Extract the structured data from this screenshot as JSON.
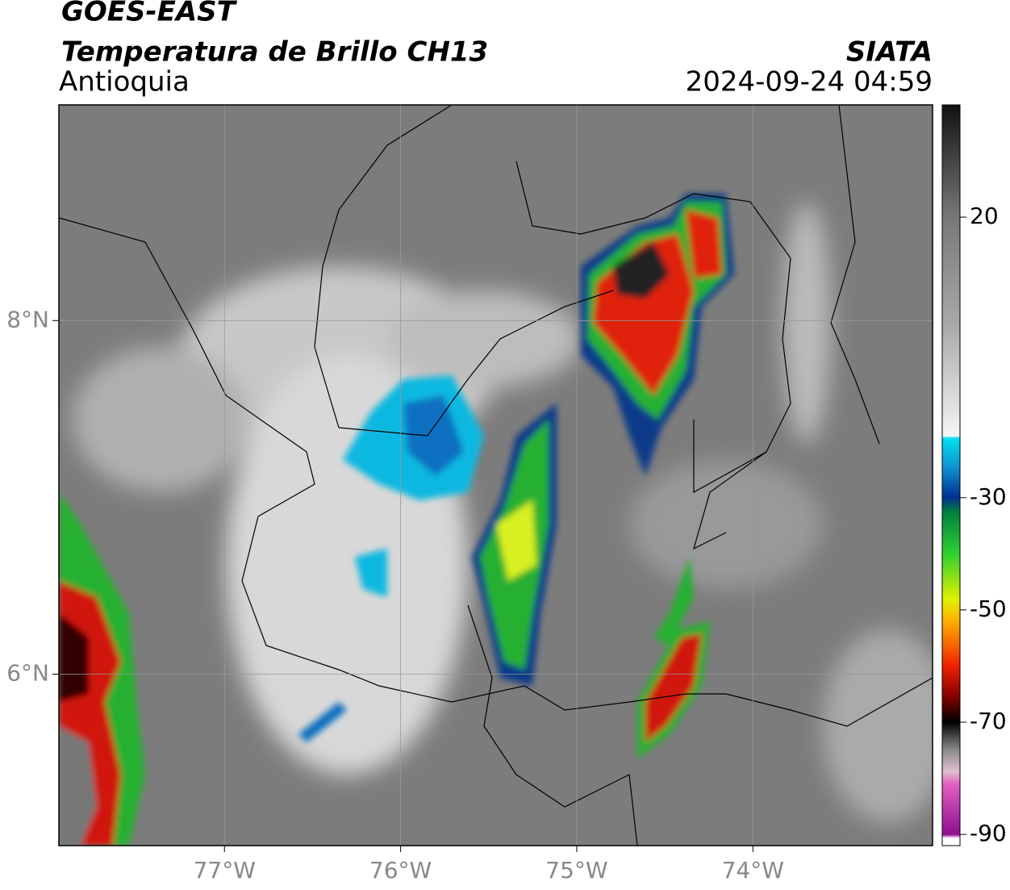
{
  "header": {
    "title": "GOES-EAST",
    "subtitle": "Temperatura de Brillo CH13",
    "region": "Antioquia",
    "source": "SIATA",
    "datetime": "2024-09-24 04:59"
  },
  "map": {
    "xlim": [
      -77.94,
      -72.98
    ],
    "ylim": [
      5.03,
      9.22
    ],
    "xticks": [
      {
        "value": -77,
        "label": "77°W"
      },
      {
        "value": -76,
        "label": "76°W"
      },
      {
        "value": -75,
        "label": "75°W"
      },
      {
        "value": -74,
        "label": "74°W"
      }
    ],
    "yticks": [
      {
        "value": 8,
        "label": "8°N"
      },
      {
        "value": 6,
        "label": "6°N"
      }
    ],
    "grid": true
  },
  "colorbar": {
    "lim": [
      -92,
      40
    ],
    "ticks": [
      20,
      -30,
      -50,
      -70,
      -90
    ]
  }
}
